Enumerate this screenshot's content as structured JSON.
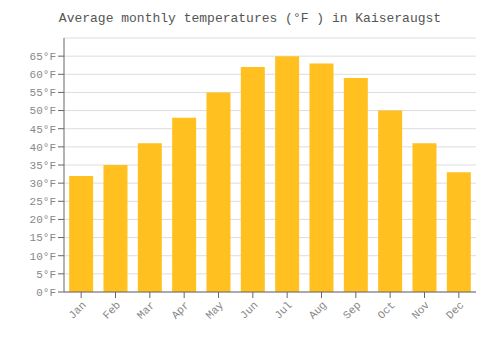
{
  "chart_data": {
    "type": "bar",
    "title": "Average monthly temperatures (°F ) in Kaiseraugst",
    "categories": [
      "Jan",
      "Feb",
      "Mar",
      "Apr",
      "May",
      "Jun",
      "Jul",
      "Aug",
      "Sep",
      "Oct",
      "Nov",
      "Dec"
    ],
    "values": [
      32,
      35,
      41,
      48,
      55,
      62,
      65,
      63,
      59,
      50,
      41,
      33
    ],
    "color": "#FFC020",
    "ylim": [
      0,
      70
    ],
    "yticks": [
      {
        "value": 0,
        "label": "0°F"
      },
      {
        "value": 5,
        "label": "5°F"
      },
      {
        "value": 10,
        "label": "10°F"
      },
      {
        "value": 15,
        "label": "15°F"
      },
      {
        "value": 20,
        "label": "20°F"
      },
      {
        "value": 25,
        "label": "25°F"
      },
      {
        "value": 30,
        "label": "30°F"
      },
      {
        "value": 35,
        "label": "35°F"
      },
      {
        "value": 40,
        "label": "40°F"
      },
      {
        "value": 45,
        "label": "45°F"
      },
      {
        "value": 50,
        "label": "50°F"
      },
      {
        "value": 55,
        "label": "55°F"
      },
      {
        "value": 60,
        "label": "60°F"
      },
      {
        "value": 65,
        "label": "65°F"
      }
    ],
    "grid": true
  }
}
